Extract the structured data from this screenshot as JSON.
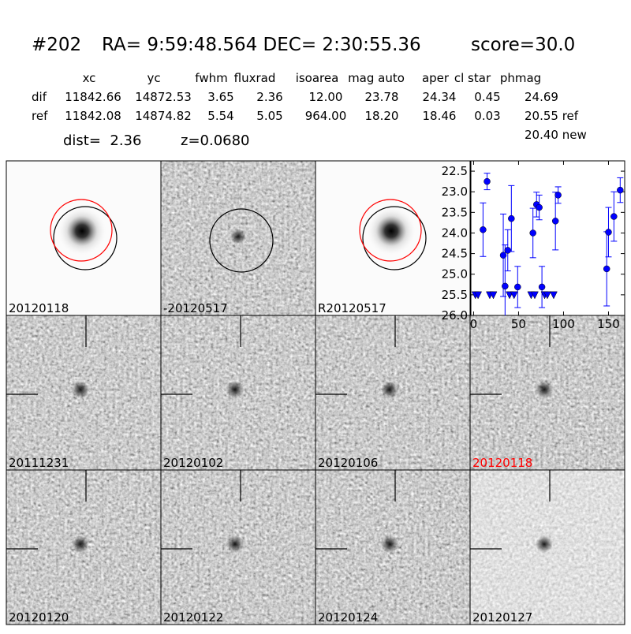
{
  "header": {
    "id": "#202",
    "coords": "RA= 9:59:48.564 DEC= 2:30:55.36",
    "score": "score=30.0"
  },
  "table": {
    "columns": [
      "xc",
      "yc",
      "fwhm",
      "fluxrad",
      "isoarea",
      "mag auto",
      "aper",
      "cl star",
      "phmag"
    ],
    "rows": [
      [
        "dif",
        "11842.66",
        "14872.53",
        "3.65",
        "2.36",
        "12.00",
        "23.78",
        "24.34",
        "0.45",
        "24.69"
      ],
      [
        "ref",
        "11842.08",
        "14874.82",
        "5.54",
        "5.05",
        "964.00",
        "18.20",
        "18.46",
        "0.03",
        "20.55 ref"
      ]
    ],
    "extra": "20.40 new"
  },
  "summary": {
    "dist": "dist=  2.36",
    "z": "z=0.0680"
  },
  "panels": [
    {
      "label": "20120118"
    },
    {
      "label": "-20120517"
    },
    {
      "label": "R20120517"
    },
    {
      "label": "20111231"
    },
    {
      "label": "20120102"
    },
    {
      "label": "20120106"
    },
    {
      "label": "20120118",
      "color": "#ff0000"
    },
    {
      "label": "20120120"
    },
    {
      "label": "20120122"
    },
    {
      "label": "20120124"
    },
    {
      "label": "20120127"
    }
  ],
  "chart_data": {
    "type": "scatter",
    "y_inverted": true,
    "xlim": [
      -3,
      168
    ],
    "xticks": [
      0,
      50,
      100,
      150
    ],
    "ylim": [
      22.25,
      26.0
    ],
    "yticks": [
      22.5,
      {
        "value": 23,
        "label": "23.0"
      },
      23.5,
      {
        "value": 24,
        "label": "24.0"
      },
      24.5,
      {
        "value": 25,
        "label": "25.0"
      },
      25.5,
      {
        "value": 26,
        "label": "26.0"
      }
    ],
    "series": [
      {
        "color": "#0000ff",
        "marker": "o",
        "x": [
          10.5,
          15,
          33,
          35,
          38,
          42,
          49,
          66,
          70,
          73,
          76,
          91,
          94,
          148,
          150,
          156,
          163
        ],
        "values": [
          23.92,
          22.75,
          24.54,
          25.29,
          24.42,
          23.65,
          25.31,
          24.0,
          23.31,
          23.38,
          25.31,
          23.71,
          23.08,
          24.87,
          23.98,
          23.6,
          22.96
        ],
        "errors": [
          0.65,
          0.2,
          1.0,
          1.0,
          0.5,
          0.8,
          0.5,
          0.6,
          0.3,
          0.3,
          0.5,
          0.7,
          0.2,
          0.9,
          0.6,
          0.6,
          0.3
        ]
      },
      {
        "color": "#0000ff",
        "marker": "v",
        "x": [
          2,
          5,
          18,
          22,
          40,
          45,
          64,
          68,
          79,
          82,
          89
        ],
        "values": [
          25.5,
          25.5,
          25.5,
          25.5,
          25.5,
          25.5,
          25.5,
          25.5,
          25.5,
          25.5,
          25.5
        ]
      }
    ]
  }
}
